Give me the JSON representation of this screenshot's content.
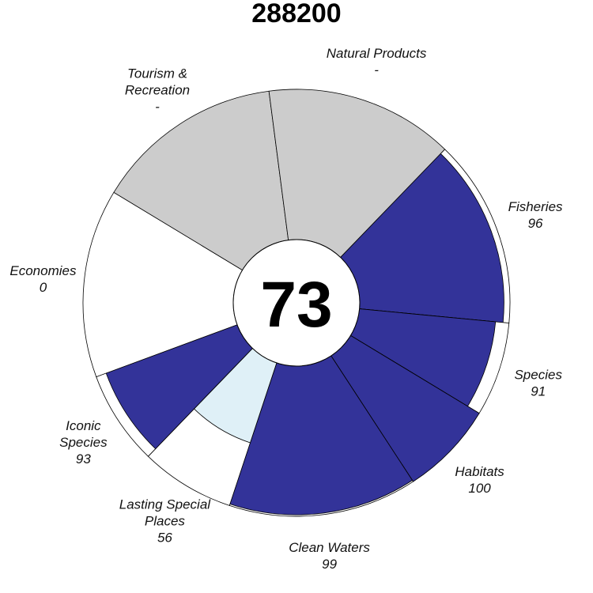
{
  "title": "288200",
  "center_score": "73",
  "colors": {
    "filled": "#333399",
    "light": "#dff0f7",
    "na": "#cccccc",
    "outline": "#000000",
    "background": "#ffffff"
  },
  "chart_data": {
    "type": "pie",
    "title": "288200",
    "center_value": 73,
    "max_value": 100,
    "slices": [
      {
        "name": "Fisheries",
        "label_lines": [
          "Fisheries"
        ],
        "value_text": "96",
        "score": 96,
        "weight": 1,
        "status": "filled"
      },
      {
        "name": "Species",
        "label_lines": [
          "Species"
        ],
        "value_text": "91",
        "score": 91,
        "weight": 0.5,
        "status": "filled"
      },
      {
        "name": "Habitats",
        "label_lines": [
          "Habitats"
        ],
        "value_text": "100",
        "score": 100,
        "weight": 0.5,
        "status": "filled"
      },
      {
        "name": "Clean Waters",
        "label_lines": [
          "Clean Waters"
        ],
        "value_text": "99",
        "score": 99,
        "weight": 1,
        "status": "filled"
      },
      {
        "name": "Lasting Special Places",
        "label_lines": [
          "Lasting Special",
          "Places"
        ],
        "value_text": "56",
        "score": 56,
        "weight": 0.5,
        "status": "light"
      },
      {
        "name": "Iconic Species",
        "label_lines": [
          "Iconic",
          "Species"
        ],
        "value_text": "93",
        "score": 93,
        "weight": 0.5,
        "status": "filled"
      },
      {
        "name": "Economies",
        "label_lines": [
          "Economies"
        ],
        "value_text": "0",
        "score": 0,
        "weight": 1,
        "status": "filled"
      },
      {
        "name": "Tourism & Recreation",
        "label_lines": [
          "Tourism &",
          "Recreation"
        ],
        "value_text": "-",
        "score": null,
        "weight": 1,
        "status": "na"
      },
      {
        "name": "Natural Products",
        "label_lines": [
          "Natural Products"
        ],
        "value_text": "-",
        "score": null,
        "weight": 1,
        "status": "na"
      }
    ]
  }
}
